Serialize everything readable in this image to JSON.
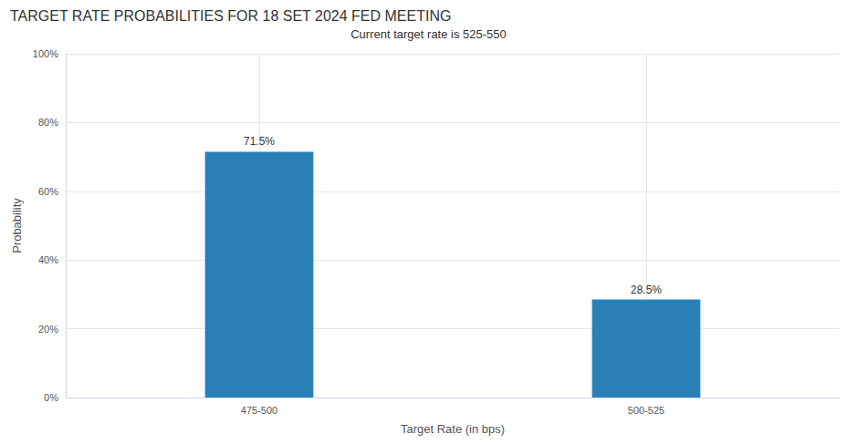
{
  "chart_data": {
    "type": "bar",
    "title": "TARGET RATE PROBABILITIES FOR 18 SET 2024 FED MEETING",
    "subtitle": "Current target rate is 525-550",
    "x_label": "Target Rate (in bps)",
    "y_label": "Probability",
    "categories": [
      "475-500",
      "500-525"
    ],
    "values": [
      71.5,
      28.5
    ],
    "value_labels": [
      "71.5%",
      "28.5%"
    ],
    "data_labels": true,
    "color": "#2980b9",
    "ylim": [
      0,
      100
    ],
    "yticks": [
      {
        "value": 0,
        "label": "0%"
      },
      {
        "value": 20,
        "label": "20%"
      },
      {
        "value": 40,
        "label": "40%"
      },
      {
        "value": 60,
        "label": "60%"
      },
      {
        "value": 80,
        "label": "80%"
      },
      {
        "value": 100,
        "label": "100%"
      }
    ],
    "grid": true
  }
}
